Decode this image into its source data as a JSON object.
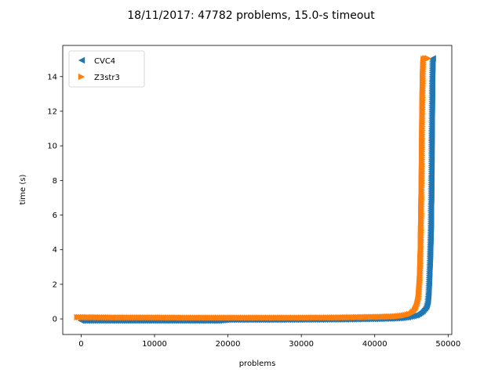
{
  "chart_data": {
    "type": "scatter",
    "title": "18/11/2017: 47782 problems, 15.0-s timeout",
    "xlabel": "problems",
    "ylabel": "time (s)",
    "xlim": [
      -2500,
      50500
    ],
    "ylim": [
      -0.9,
      15.8
    ],
    "xticks": [
      0,
      10000,
      20000,
      30000,
      40000,
      50000
    ],
    "yticks": [
      0,
      2,
      4,
      6,
      8,
      10,
      12,
      14
    ],
    "legend_position": "top-left",
    "series": [
      {
        "name": "CVC4",
        "color": "#1f77b4",
        "marker": "triangle-left",
        "points": [
          [
            0,
            -0.1
          ],
          [
            5000,
            -0.1
          ],
          [
            10000,
            -0.1
          ],
          [
            15000,
            -0.1
          ],
          [
            18500,
            -0.1
          ],
          [
            20000,
            -0.05
          ],
          [
            25000,
            -0.05
          ],
          [
            30000,
            -0.04
          ],
          [
            35000,
            -0.03
          ],
          [
            40000,
            0.0
          ],
          [
            42000,
            0.02
          ],
          [
            43500,
            0.05
          ],
          [
            44500,
            0.1
          ],
          [
            45500,
            0.2
          ],
          [
            46000,
            0.3
          ],
          [
            46500,
            0.45
          ],
          [
            47000,
            0.7
          ],
          [
            47200,
            1.0
          ],
          [
            47300,
            1.5
          ],
          [
            47400,
            2.5
          ],
          [
            47500,
            3.5
          ],
          [
            47550,
            4.3
          ],
          [
            47600,
            5.0
          ],
          [
            47620,
            5.4
          ],
          [
            47640,
            6.6
          ],
          [
            47660,
            6.8
          ],
          [
            47680,
            8.2
          ],
          [
            47700,
            8.3
          ],
          [
            47720,
            10.2
          ],
          [
            47740,
            11.0
          ],
          [
            47760,
            12.0
          ],
          [
            47780,
            13.0
          ],
          [
            47800,
            13.8
          ],
          [
            47850,
            15.0
          ],
          [
            47900,
            15.05
          ]
        ]
      },
      {
        "name": "Z3str3",
        "color": "#ff7f0e",
        "marker": "triangle-right",
        "points": [
          [
            -500,
            0.1
          ],
          [
            5000,
            0.08
          ],
          [
            10000,
            0.08
          ],
          [
            15000,
            0.07
          ],
          [
            20000,
            0.07
          ],
          [
            25000,
            0.07
          ],
          [
            30000,
            0.07
          ],
          [
            35000,
            0.08
          ],
          [
            38000,
            0.1
          ],
          [
            41000,
            0.12
          ],
          [
            43000,
            0.15
          ],
          [
            44000,
            0.2
          ],
          [
            45000,
            0.3
          ],
          [
            45500,
            0.5
          ],
          [
            45800,
            0.8
          ],
          [
            46000,
            1.2
          ],
          [
            46100,
            1.8
          ],
          [
            46200,
            2.5
          ],
          [
            46250,
            3.2
          ],
          [
            46300,
            4.0
          ],
          [
            46320,
            4.6
          ],
          [
            46340,
            5.2
          ],
          [
            46360,
            5.8
          ],
          [
            46380,
            6.4
          ],
          [
            46400,
            7.0
          ],
          [
            46420,
            7.6
          ],
          [
            46440,
            8.2
          ],
          [
            46460,
            9.0
          ],
          [
            46480,
            10.0
          ],
          [
            46500,
            11.0
          ],
          [
            46520,
            12.0
          ],
          [
            46540,
            12.6
          ],
          [
            46560,
            13.2
          ],
          [
            46580,
            13.6
          ],
          [
            46600,
            14.2
          ],
          [
            46650,
            14.8
          ],
          [
            46700,
            15.02
          ],
          [
            46900,
            15.05
          ],
          [
            47300,
            15.05
          ]
        ]
      }
    ]
  }
}
